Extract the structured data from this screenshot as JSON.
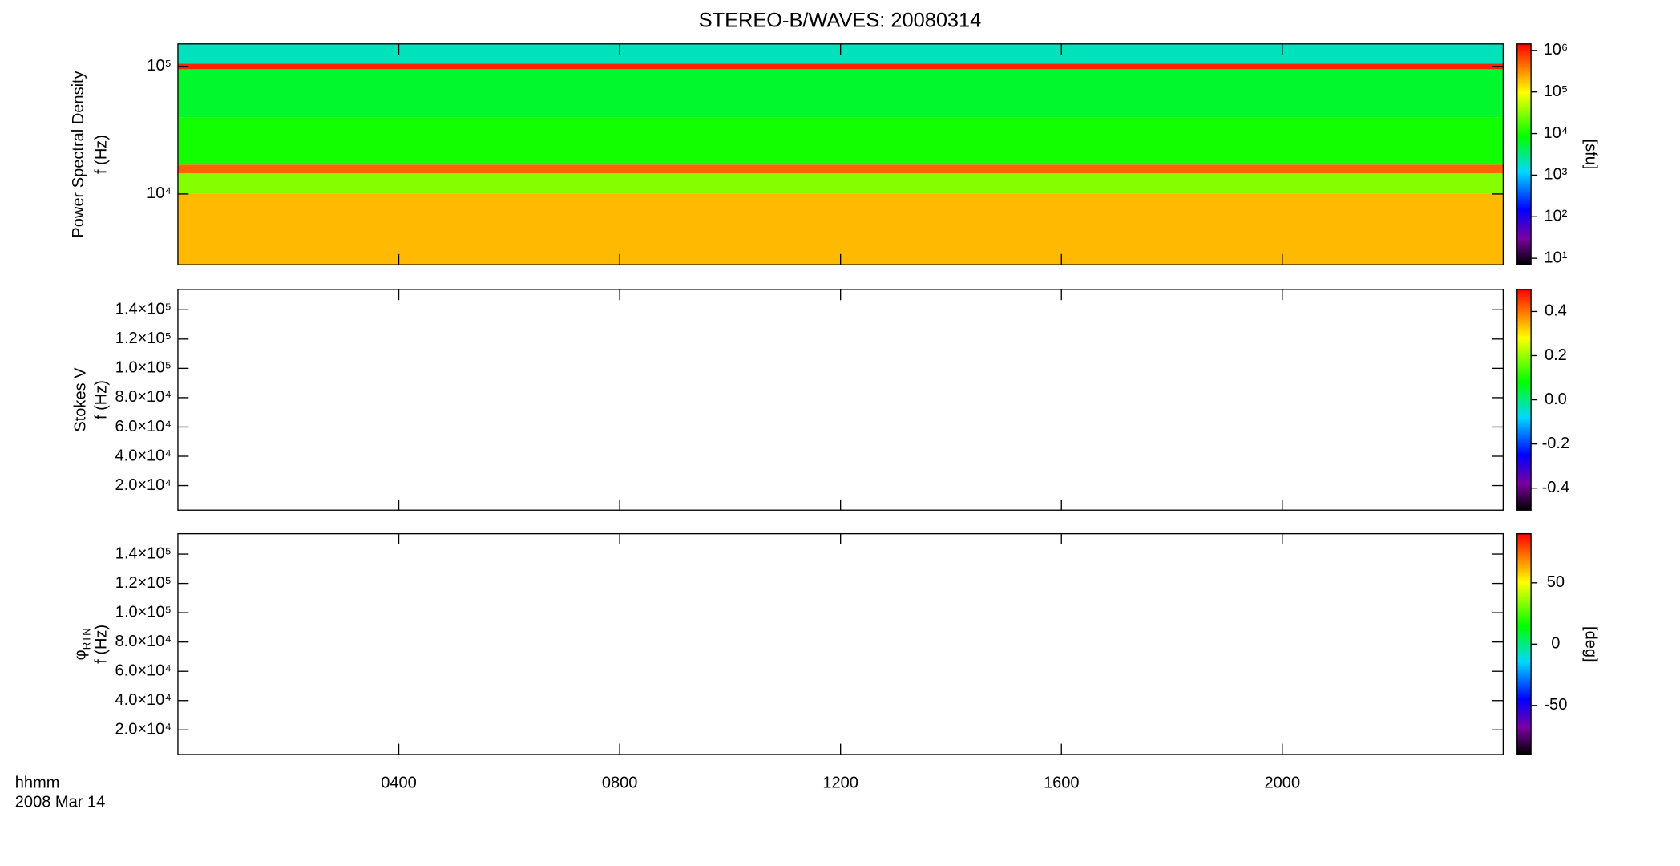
{
  "chart_data": [
    {
      "type": "heatmap",
      "title": "STEREO-B/WAVES: 20080314",
      "ylabel": "Power Spectral Density",
      "ylabel2": "f (Hz)",
      "ylog": true,
      "ylim": [
        2790,
        150000
      ],
      "yticks": [
        {
          "value": 10000,
          "label": "10⁴"
        },
        {
          "value": 100000,
          "label": "10⁵"
        }
      ],
      "xlim": [
        0,
        24
      ],
      "xticks": [
        4,
        8,
        12,
        16,
        20
      ],
      "bands": [
        {
          "f": [
            2790,
            10000
          ],
          "value": 200000
        },
        {
          "f": [
            10000,
            14500
          ],
          "value": 30000
        },
        {
          "f": [
            14500,
            17000
          ],
          "value": 500000
        },
        {
          "f": [
            17000,
            40000
          ],
          "value": 10000
        },
        {
          "f": [
            40000,
            95000
          ],
          "value": 6000
        },
        {
          "f": [
            95000,
            105000
          ],
          "value": 1000000
        },
        {
          "f": [
            105000,
            150000
          ],
          "value": 2000
        }
      ],
      "clog": true,
      "clim": [
        7,
        1430000
      ],
      "cticks": [
        {
          "value": 10,
          "label": "10¹"
        },
        {
          "value": 100,
          "label": "10²"
        },
        {
          "value": 1000,
          "label": "10³"
        },
        {
          "value": 10000,
          "label": "10⁴"
        },
        {
          "value": 100000,
          "label": "10⁵"
        },
        {
          "value": 1000000,
          "label": "10⁶"
        }
      ],
      "clabel": "[sfu]"
    },
    {
      "type": "heatmap",
      "ylabel": "Stokes V",
      "ylabel2": "f (Hz)",
      "ylog": false,
      "ylim": [
        3200,
        153900
      ],
      "yticks": [
        {
          "value": 20000,
          "label": "2.0×10⁴"
        },
        {
          "value": 40000,
          "label": "4.0×10⁴"
        },
        {
          "value": 60000,
          "label": "6.0×10⁴"
        },
        {
          "value": 80000,
          "label": "8.0×10⁴"
        },
        {
          "value": 100000,
          "label": "1.0×10⁵"
        },
        {
          "value": 120000,
          "label": "1.2×10⁵"
        },
        {
          "value": 140000,
          "label": "1.4×10⁵"
        }
      ],
      "xlim": [
        0,
        24
      ],
      "xticks": [
        4,
        8,
        12,
        16,
        20
      ],
      "bands": [],
      "clog": false,
      "clim": [
        -0.5,
        0.5
      ],
      "cticks": [
        -0.4,
        -0.2,
        {
          "value": 0,
          "label": "0.0"
        },
        0.2,
        0.4
      ]
    },
    {
      "type": "heatmap",
      "ylabel": "φ",
      "ylabel_sub": "RTN",
      "ylabel2": "f (Hz)",
      "ylog": false,
      "ylim": [
        3200,
        153900
      ],
      "yticks": [
        {
          "value": 20000,
          "label": "2.0×10⁴"
        },
        {
          "value": 40000,
          "label": "4.0×10⁴"
        },
        {
          "value": 60000,
          "label": "6.0×10⁴"
        },
        {
          "value": 80000,
          "label": "8.0×10⁴"
        },
        {
          "value": 100000,
          "label": "1.0×10⁵"
        },
        {
          "value": 120000,
          "label": "1.2×10⁵"
        },
        {
          "value": 140000,
          "label": "1.4×10⁵"
        }
      ],
      "xlim": [
        0,
        24
      ],
      "xticks": [
        {
          "value": 4,
          "label": "0400"
        },
        {
          "value": 8,
          "label": "0800"
        },
        {
          "value": 12,
          "label": "1200"
        },
        {
          "value": 16,
          "label": "1600"
        },
        {
          "value": 20,
          "label": "2000"
        }
      ],
      "xlabel": "hhmm",
      "xlabel2": "2008 Mar 14",
      "bands": [],
      "clog": false,
      "clim": [
        -90,
        90
      ],
      "cticks": [
        -50,
        0,
        50
      ],
      "clabel": "[deg]"
    }
  ]
}
